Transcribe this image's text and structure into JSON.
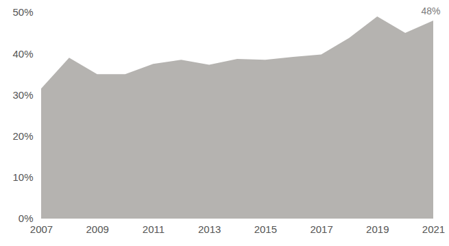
{
  "chart_data": {
    "type": "area",
    "x": [
      2007,
      2008,
      2009,
      2010,
      2011,
      2012,
      2013,
      2014,
      2015,
      2016,
      2017,
      2018,
      2019,
      2020,
      2021
    ],
    "values": [
      31.5,
      39,
      35,
      35,
      37.5,
      38.5,
      37.3,
      38.7,
      38.5,
      39.2,
      39.8,
      43.8,
      49,
      45,
      48
    ],
    "color": "#b5b3b0",
    "xlim": [
      2007,
      2021
    ],
    "xticks": [
      2007,
      2009,
      2011,
      2013,
      2015,
      2017,
      2019,
      2021
    ],
    "ylim": [
      0,
      50
    ],
    "yticks": [
      {
        "value": 0,
        "label": "0%"
      },
      {
        "value": 10,
        "label": "10%"
      },
      {
        "value": 20,
        "label": "20%"
      },
      {
        "value": 30,
        "label": "30%"
      },
      {
        "value": 40,
        "label": "40%"
      },
      {
        "value": 50,
        "label": "50%"
      }
    ],
    "grid": false,
    "annotations": [
      {
        "text": "48%",
        "x": 2021,
        "y": 48
      }
    ]
  }
}
